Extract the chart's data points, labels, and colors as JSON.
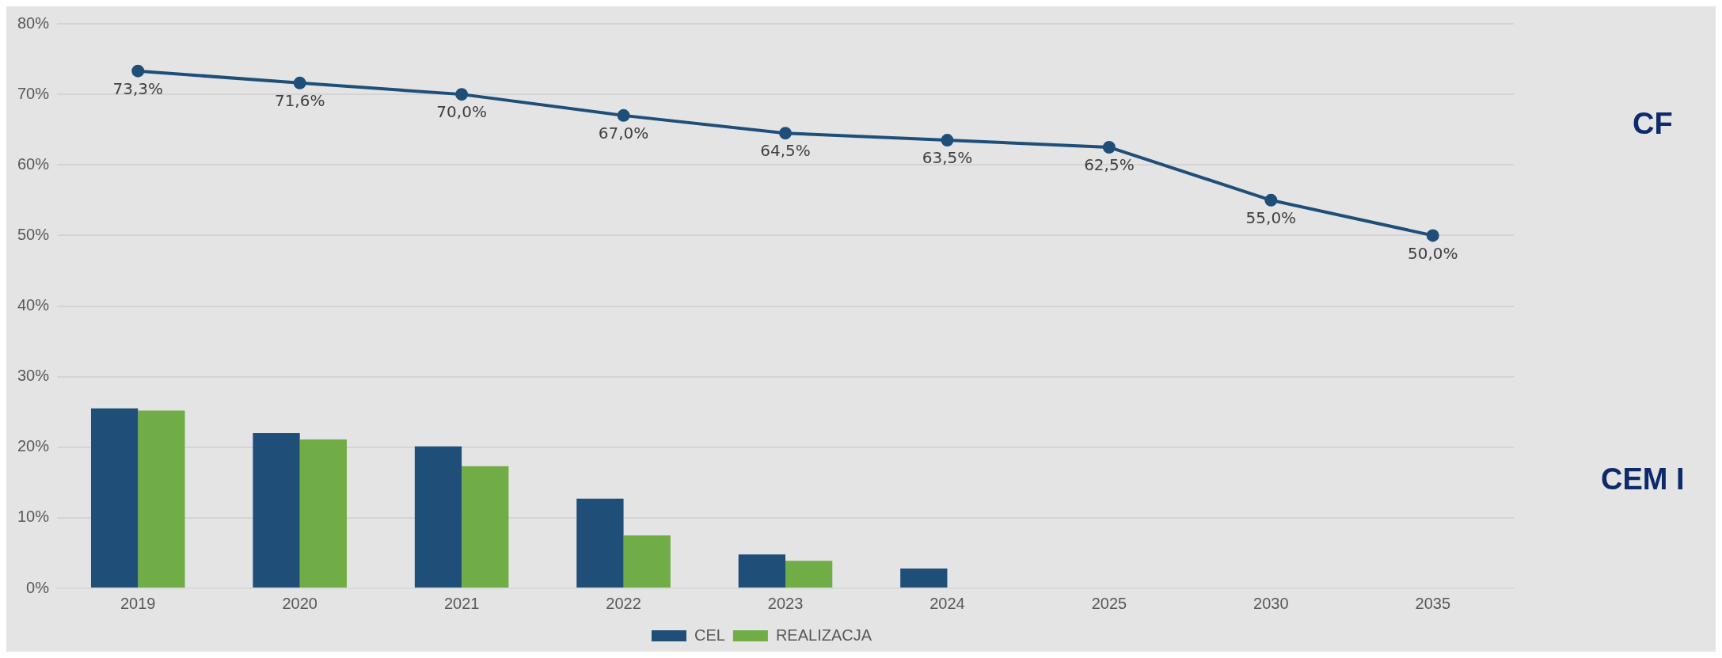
{
  "chart_data": {
    "type": "bar",
    "categories": [
      "2019",
      "2020",
      "2021",
      "2022",
      "2023",
      "2024",
      "2025",
      "2030",
      "2035"
    ],
    "series": [
      {
        "type": "line",
        "color": "#1f4e79",
        "values": [
          73.3,
          71.6,
          70.0,
          67.0,
          64.5,
          63.5,
          62.5,
          55.0,
          50.0
        ],
        "value_labels": [
          "73,3%",
          "71,6%",
          "70,0%",
          "67,0%",
          "64,5%",
          "63,5%",
          "62,5%",
          "55,0%",
          "50,0%"
        ]
      },
      {
        "name": "CEL",
        "color": "#1f4e79",
        "values": [
          25.5,
          22.0,
          20.1,
          12.7,
          4.8,
          2.8,
          null,
          null,
          null
        ]
      },
      {
        "name": "REALIZACJA",
        "color": "#70ad47",
        "values": [
          25.2,
          21.1,
          17.3,
          7.5,
          3.9,
          null,
          null,
          null,
          null
        ]
      }
    ],
    "ylim": [
      0,
      80
    ],
    "yticks": [
      {
        "value": 0,
        "label": "0%"
      },
      {
        "value": 10,
        "label": "10%"
      },
      {
        "value": 20,
        "label": "20%"
      },
      {
        "value": 30,
        "label": "30%"
      },
      {
        "value": 40,
        "label": "40%"
      },
      {
        "value": 50,
        "label": "50%"
      },
      {
        "value": 60,
        "label": "60%"
      },
      {
        "value": 70,
        "label": "70%"
      },
      {
        "value": 80,
        "label": "80%"
      }
    ],
    "annotations": [
      "CF",
      "CEM I"
    ],
    "grid": "y",
    "legend": "bottom",
    "marker": "circle",
    "line_style": "solid"
  }
}
